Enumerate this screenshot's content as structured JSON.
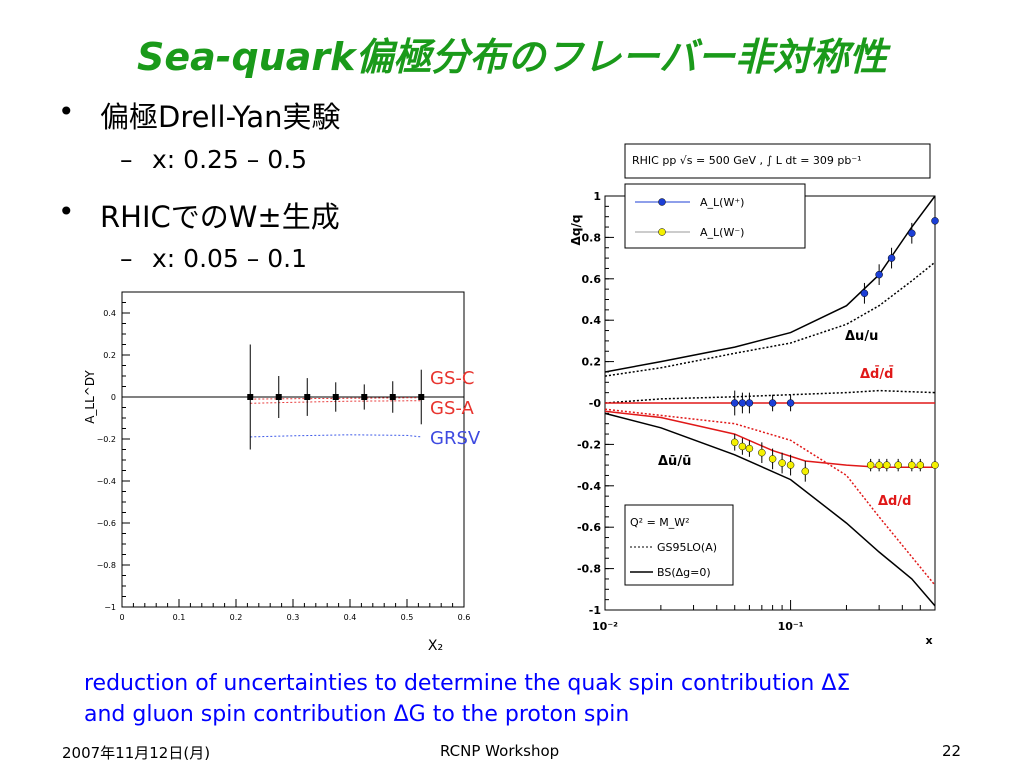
{
  "slide": {
    "title": "Sea-quark偏極分布のフレーバー非対称性",
    "bullets": [
      {
        "text": "偏極Drell-Yan実験",
        "sub": "x: 0.25 – 0.5"
      },
      {
        "text": "RHICでのW±生成",
        "sub": "x: 0.05 – 0.1"
      }
    ],
    "note_line1": "reduction of uncertainties to determine the quak spin contribution ΔΣ",
    "note_line2": "and gluon spin contribution ΔG to the proton spin",
    "footer_date": "2007年11月12日(月)",
    "footer_center": "RCNP Workshop",
    "footer_page": "22"
  },
  "chart_data": [
    {
      "type": "scatter",
      "xlabel": "X₂",
      "ylabel": "A_LL^DY",
      "xlim": [
        0,
        0.6
      ],
      "ylim": [
        -1,
        0.5
      ],
      "x_ticks": [
        "0",
        "0.1",
        "0.2",
        "0.3",
        "0.4",
        "0.5",
        "0.6"
      ],
      "y_ticks": [
        "−1",
        "−0.8",
        "−0.6",
        "−0.4",
        "−0.2",
        "0",
        "0.2",
        "0.4"
      ],
      "series": [
        {
          "name": "data",
          "x": [
            0.225,
            0.275,
            0.325,
            0.375,
            0.425,
            0.475,
            0.525
          ],
          "y": [
            0,
            0,
            0,
            0,
            0,
            0,
            0
          ],
          "err": [
            0.25,
            0.1,
            0.09,
            0.07,
            0.06,
            0.075,
            0.13
          ]
        },
        {
          "name": "GS-C",
          "color": "#e83d3d",
          "x": [
            0.225,
            0.3,
            0.4,
            0.5,
            0.525
          ],
          "y": [
            -0.03,
            -0.025,
            -0.02,
            -0.018,
            -0.018
          ]
        },
        {
          "name": "GS-A",
          "color": "#e83d3d",
          "x": [
            0.225,
            0.3,
            0.4,
            0.5,
            0.525
          ],
          "y": [
            -0.01,
            -0.008,
            -0.006,
            -0.004,
            -0.004
          ]
        },
        {
          "name": "GRSV",
          "color": "#3e5ae8",
          "x": [
            0.225,
            0.3,
            0.4,
            0.5,
            0.525
          ],
          "y": [
            -0.19,
            -0.185,
            -0.18,
            -0.183,
            -0.19
          ]
        }
      ],
      "legend_labels": [
        "GS-C",
        "GS-A",
        "GRSV"
      ],
      "legend_colors": [
        "#e8342e",
        "#e8342e",
        "#3e4ae0"
      ]
    },
    {
      "type": "line",
      "xlabel": "x",
      "ylabel": "Δq/q",
      "xscale": "log",
      "xlim": [
        0.01,
        0.6
      ],
      "ylim": [
        -1,
        1
      ],
      "y_ticks": [
        "-1",
        "-0.8",
        "-0.6",
        "-0.4",
        "-0.2",
        "-0",
        "0.2",
        "0.4",
        "0.6",
        "0.8",
        "1"
      ],
      "x_ticks": [
        "10⁻²",
        "10⁻¹"
      ],
      "header": "RHIC pp √s = 500 GeV , ∫ L dt = 309 pb⁻¹",
      "legend_top": [
        "A_L(W⁺)",
        "A_L(W⁻)"
      ],
      "legend_bottom": [
        "Q² = M_W²",
        "GS95LO(A)",
        "BS(Δg=0)"
      ],
      "curve_labels": [
        "Δu/u",
        "Δd̄/d̄",
        "Δū/ū",
        "Δd/d"
      ],
      "series": [
        {
          "name": "Δu/u BS",
          "x": [
            0.01,
            0.02,
            0.05,
            0.1,
            0.2,
            0.3,
            0.45,
            0.6
          ],
          "y": [
            0.15,
            0.2,
            0.27,
            0.34,
            0.47,
            0.62,
            0.85,
            1.0
          ]
        },
        {
          "name": "Δu/u GS95",
          "x": [
            0.01,
            0.02,
            0.05,
            0.1,
            0.2,
            0.3,
            0.45,
            0.6
          ],
          "y": [
            0.13,
            0.17,
            0.24,
            0.29,
            0.38,
            0.47,
            0.59,
            0.68
          ]
        },
        {
          "name": "Δd̄/d̄ GS95",
          "x": [
            0.01,
            0.02,
            0.05,
            0.1,
            0.2,
            0.3,
            0.6
          ],
          "y": [
            0.0,
            0.02,
            0.03,
            0.04,
            0.05,
            0.06,
            0.05
          ]
        },
        {
          "name": "Δd̄/d̄ BS",
          "x": [
            0.01,
            0.6
          ],
          "y": [
            0.0,
            0.0
          ]
        },
        {
          "name": "Δū/ū BS",
          "x": [
            0.01,
            0.02,
            0.05,
            0.08,
            0.12,
            0.2,
            0.3,
            0.6
          ],
          "y": [
            -0.04,
            -0.07,
            -0.15,
            -0.23,
            -0.28,
            -0.3,
            -0.31,
            -0.31
          ]
        },
        {
          "name": "Δū/ū GS95",
          "x": [
            0.01,
            0.02,
            0.05,
            0.1,
            0.2,
            0.3,
            0.6
          ],
          "y": [
            -0.03,
            -0.06,
            -0.1,
            -0.18,
            -0.35,
            -0.55,
            -0.88
          ]
        },
        {
          "name": "Δd/d BS",
          "x": [
            0.01,
            0.02,
            0.05,
            0.1,
            0.2,
            0.3,
            0.45,
            0.6
          ],
          "y": [
            -0.05,
            -0.12,
            -0.25,
            -0.37,
            -0.58,
            -0.72,
            -0.85,
            -0.98
          ]
        }
      ],
      "points_W_plus": {
        "x": [
          0.05,
          0.055,
          0.06,
          0.08,
          0.1,
          0.25,
          0.3,
          0.35,
          0.45,
          0.6
        ],
        "y": [
          0.0,
          0.0,
          0.0,
          0.0,
          0.0,
          0.53,
          0.62,
          0.7,
          0.82,
          0.88
        ],
        "err": [
          0.06,
          0.05,
          0.05,
          0.04,
          0.04,
          0.05,
          0.05,
          0.05,
          0.05,
          0.05
        ]
      },
      "points_W_minus": {
        "x": [
          0.05,
          0.055,
          0.06,
          0.07,
          0.08,
          0.09,
          0.1,
          0.12,
          0.27,
          0.3,
          0.33,
          0.38,
          0.45,
          0.5,
          0.6
        ],
        "y": [
          -0.19,
          -0.21,
          -0.22,
          -0.24,
          -0.27,
          -0.29,
          -0.3,
          -0.33,
          -0.3,
          -0.3,
          -0.3,
          -0.3,
          -0.3,
          -0.3,
          -0.3
        ],
        "err": [
          0.04,
          0.04,
          0.04,
          0.05,
          0.05,
          0.05,
          0.05,
          0.05,
          0.03,
          0.03,
          0.03,
          0.03,
          0.03,
          0.03,
          0.03
        ]
      }
    }
  ]
}
